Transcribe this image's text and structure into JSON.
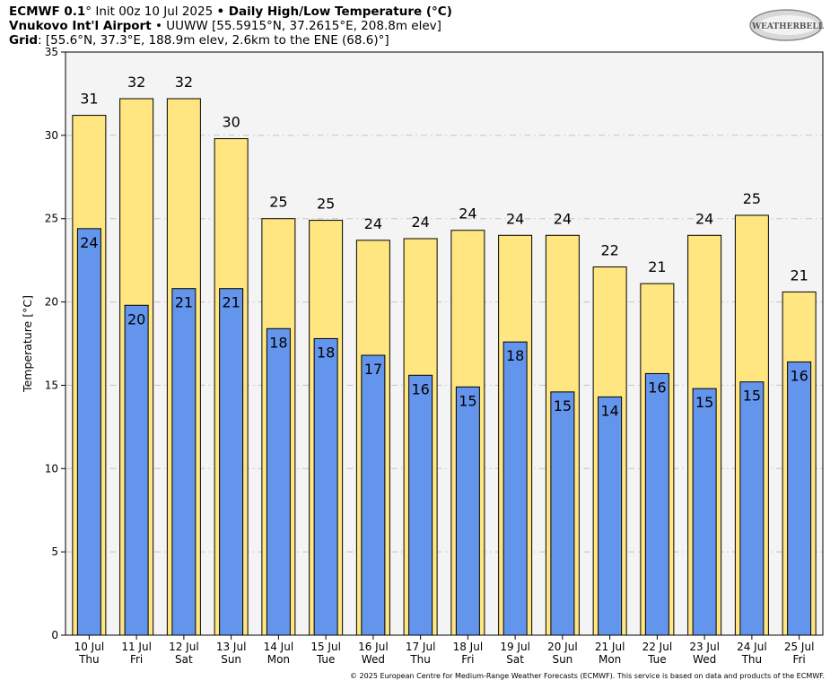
{
  "header": {
    "line1_bold_a": "ECMWF 0.1",
    "line1_normal": "° Init 00z 10 Jul 2025 ",
    "line1_bullet": "•",
    "line1_bold_b": " Daily High/Low Temperature (°C)",
    "line2_bold": "Vnukovo Int'l Airport",
    "line2_normal": " • UUWW [55.5915°N, 37.2615°E, 208.8m elev]",
    "line3_bold": "Grid",
    "line3_normal": ": [55.6°N, 37.3°E, 188.9m elev, 2.6km to the ENE (68.6)°]"
  },
  "logo": {
    "text": "WEATHERBELL",
    "icon": "weatherbell-swoosh-logo"
  },
  "footer": "© 2025 European Centre for Medium-Range Weather Forecasts (ECMWF). This service is based on data and products of the ECMWF.",
  "colors": {
    "high_bar": "#ffe680",
    "low_bar": "#6495ed",
    "plot_bg": "#f4f4f4",
    "grid": "#c4c4c4"
  },
  "chart_data": {
    "type": "bar",
    "ylabel": "Temperature [°C]",
    "ylim": [
      0,
      35
    ],
    "yticks": [
      0,
      5,
      10,
      15,
      20,
      25,
      30,
      35
    ],
    "grid": true,
    "categories": [
      "10 Jul",
      "11 Jul",
      "12 Jul",
      "13 Jul",
      "14 Jul",
      "15 Jul",
      "16 Jul",
      "17 Jul",
      "18 Jul",
      "19 Jul",
      "20 Jul",
      "21 Jul",
      "22 Jul",
      "23 Jul",
      "24 Jul",
      "25 Jul"
    ],
    "weekdays": [
      "Thu",
      "Fri",
      "Sat",
      "Sun",
      "Mon",
      "Tue",
      "Wed",
      "Thu",
      "Fri",
      "Sat",
      "Sun",
      "Mon",
      "Tue",
      "Wed",
      "Thu",
      "Fri"
    ],
    "series": [
      {
        "values": [
          31.2,
          32.2,
          32.2,
          29.8,
          25.0,
          24.9,
          23.7,
          23.8,
          24.3,
          24.0,
          24.0,
          22.1,
          21.1,
          24.0,
          25.2,
          20.6
        ],
        "labels": [
          "31",
          "32",
          "32",
          "30",
          "25",
          "25",
          "24",
          "24",
          "24",
          "24",
          "24",
          "22",
          "21",
          "24",
          "25",
          "21"
        ]
      },
      {
        "values": [
          24.4,
          19.8,
          20.8,
          20.8,
          18.4,
          17.8,
          16.8,
          15.6,
          14.9,
          17.6,
          14.6,
          14.3,
          15.7,
          14.8,
          15.2,
          16.4
        ],
        "labels": [
          "24",
          "20",
          "21",
          "21",
          "18",
          "18",
          "17",
          "16",
          "15",
          "18",
          "15",
          "14",
          "16",
          "15",
          "15",
          "16"
        ]
      }
    ]
  }
}
